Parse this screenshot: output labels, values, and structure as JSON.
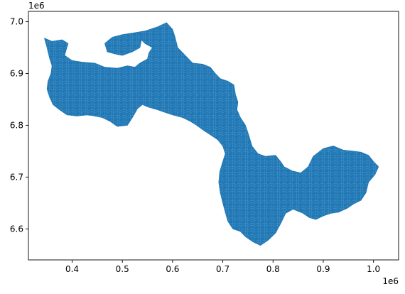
{
  "chart_data": {
    "type": "choropleth-map",
    "title": "",
    "xlabel": "",
    "ylabel": "",
    "x_offset_label": "1e6",
    "y_offset_label": "1e6",
    "xlim": [
      0.313,
      1.05
    ],
    "ylim": [
      6.54,
      7.02
    ],
    "x_ticks": [
      0.4,
      0.5,
      0.6,
      0.7,
      0.8,
      0.9,
      1.0
    ],
    "x_tick_labels": [
      "0.4",
      "0.5",
      "0.6",
      "0.7",
      "0.8",
      "0.9",
      "1.0"
    ],
    "y_ticks": [
      6.6,
      6.7,
      6.8,
      6.9,
      7.0
    ],
    "y_tick_labels": [
      "6.6",
      "6.7",
      "6.8",
      "6.9",
      "7.0"
    ],
    "grid": false,
    "legend": "none",
    "fill_color": "#1f77b4",
    "edge_color": "#5b9fd0",
    "region_outline": [
      [
        0.345,
        6.968
      ],
      [
        0.36,
        6.962
      ],
      [
        0.38,
        6.965
      ],
      [
        0.392,
        6.958
      ],
      [
        0.385,
        6.935
      ],
      [
        0.4,
        6.925
      ],
      [
        0.42,
        6.922
      ],
      [
        0.445,
        6.92
      ],
      [
        0.465,
        6.912
      ],
      [
        0.49,
        6.91
      ],
      [
        0.51,
        6.915
      ],
      [
        0.525,
        6.912
      ],
      [
        0.535,
        6.92
      ],
      [
        0.55,
        6.928
      ],
      [
        0.553,
        6.94
      ],
      [
        0.56,
        6.95
      ],
      [
        0.545,
        6.958
      ],
      [
        0.538,
        6.965
      ],
      [
        0.535,
        6.95
      ],
      [
        0.52,
        6.942
      ],
      [
        0.5,
        6.935
      ],
      [
        0.485,
        6.938
      ],
      [
        0.47,
        6.942
      ],
      [
        0.465,
        6.958
      ],
      [
        0.48,
        6.97
      ],
      [
        0.5,
        6.975
      ],
      [
        0.52,
        6.978
      ],
      [
        0.545,
        6.982
      ],
      [
        0.57,
        6.99
      ],
      [
        0.588,
        6.998
      ],
      [
        0.6,
        6.985
      ],
      [
        0.605,
        6.97
      ],
      [
        0.61,
        6.95
      ],
      [
        0.625,
        6.935
      ],
      [
        0.64,
        6.92
      ],
      [
        0.66,
        6.918
      ],
      [
        0.675,
        6.912
      ],
      [
        0.685,
        6.9
      ],
      [
        0.695,
        6.89
      ],
      [
        0.71,
        6.885
      ],
      [
        0.722,
        6.878
      ],
      [
        0.725,
        6.86
      ],
      [
        0.73,
        6.845
      ],
      [
        0.728,
        6.83
      ],
      [
        0.735,
        6.815
      ],
      [
        0.745,
        6.8
      ],
      [
        0.752,
        6.78
      ],
      [
        0.758,
        6.76
      ],
      [
        0.77,
        6.745
      ],
      [
        0.785,
        6.74
      ],
      [
        0.805,
        6.742
      ],
      [
        0.815,
        6.73
      ],
      [
        0.822,
        6.72
      ],
      [
        0.838,
        6.712
      ],
      [
        0.855,
        6.708
      ],
      [
        0.87,
        6.72
      ],
      [
        0.88,
        6.74
      ],
      [
        0.9,
        6.755
      ],
      [
        0.92,
        6.76
      ],
      [
        0.94,
        6.752
      ],
      [
        0.96,
        6.75
      ],
      [
        0.975,
        6.748
      ],
      [
        0.99,
        6.742
      ],
      [
        1.0,
        6.73
      ],
      [
        1.01,
        6.72
      ],
      [
        1.003,
        6.705
      ],
      [
        0.99,
        6.69
      ],
      [
        0.985,
        6.67
      ],
      [
        0.975,
        6.655
      ],
      [
        0.96,
        6.648
      ],
      [
        0.948,
        6.64
      ],
      [
        0.93,
        6.632
      ],
      [
        0.915,
        6.63
      ],
      [
        0.9,
        6.625
      ],
      [
        0.885,
        6.618
      ],
      [
        0.872,
        6.622
      ],
      [
        0.86,
        6.63
      ],
      [
        0.84,
        6.638
      ],
      [
        0.825,
        6.63
      ],
      [
        0.815,
        6.61
      ],
      [
        0.805,
        6.592
      ],
      [
        0.79,
        6.578
      ],
      [
        0.775,
        6.568
      ],
      [
        0.76,
        6.575
      ],
      [
        0.745,
        6.585
      ],
      [
        0.735,
        6.595
      ],
      [
        0.72,
        6.6
      ],
      [
        0.71,
        6.615
      ],
      [
        0.705,
        6.632
      ],
      [
        0.7,
        6.65
      ],
      [
        0.695,
        6.67
      ],
      [
        0.692,
        6.69
      ],
      [
        0.694,
        6.71
      ],
      [
        0.7,
        6.73
      ],
      [
        0.705,
        6.745
      ],
      [
        0.7,
        6.76
      ],
      [
        0.69,
        6.772
      ],
      [
        0.678,
        6.78
      ],
      [
        0.662,
        6.79
      ],
      [
        0.648,
        6.8
      ],
      [
        0.635,
        6.808
      ],
      [
        0.62,
        6.815
      ],
      [
        0.6,
        6.82
      ],
      [
        0.585,
        6.825
      ],
      [
        0.57,
        6.83
      ],
      [
        0.552,
        6.835
      ],
      [
        0.54,
        6.84
      ],
      [
        0.53,
        6.832
      ],
      [
        0.52,
        6.815
      ],
      [
        0.51,
        6.8
      ],
      [
        0.49,
        6.798
      ],
      [
        0.475,
        6.808
      ],
      [
        0.46,
        6.815
      ],
      [
        0.445,
        6.818
      ],
      [
        0.43,
        6.82
      ],
      [
        0.41,
        6.818
      ],
      [
        0.39,
        6.82
      ],
      [
        0.375,
        6.83
      ],
      [
        0.362,
        6.84
      ],
      [
        0.355,
        6.855
      ],
      [
        0.35,
        6.87
      ],
      [
        0.352,
        6.885
      ],
      [
        0.358,
        6.9
      ],
      [
        0.36,
        6.915
      ],
      [
        0.355,
        6.93
      ],
      [
        0.35,
        6.95
      ],
      [
        0.345,
        6.968
      ]
    ]
  }
}
